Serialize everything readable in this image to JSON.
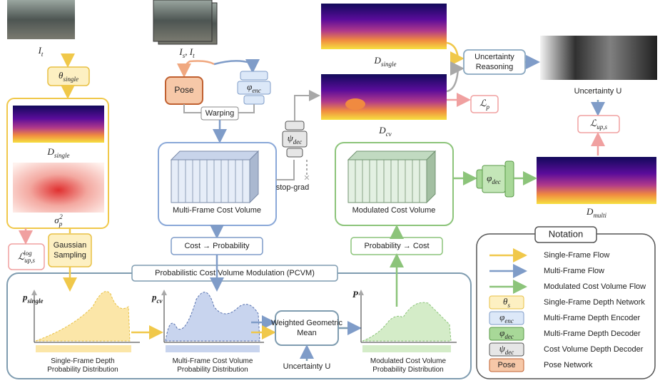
{
  "inputs": {
    "target": {
      "base": "I",
      "sub": "t"
    },
    "pair": {
      "base": "I",
      "sub": "s",
      "base2": ", I",
      "sub2": "t"
    }
  },
  "left_branch": {
    "network": {
      "base": "θ",
      "sub": "single"
    },
    "depth": {
      "base": "D",
      "sub": "single"
    },
    "variance": {
      "base": "σ",
      "sub": "p",
      "sup": "2"
    },
    "loss": {
      "base": "ℒ",
      "sub": "up,s",
      "sup": "log"
    },
    "sampling": "Gaussian Sampling"
  },
  "multi_branch": {
    "pose": "Pose",
    "encoder": {
      "base": "φ",
      "sub": "enc"
    },
    "warping": "Warping",
    "cost_volume": "Multi-Frame Cost Volume",
    "to_probability": "Cost → Probability",
    "cv_decoder": {
      "base": "ψ",
      "sub": "dec"
    },
    "stop_grad": "stop-grad"
  },
  "outputs": {
    "single_depth": {
      "base": "D",
      "sub": "single"
    },
    "cv_depth": {
      "base": "D",
      "sub": "cv"
    },
    "photo_loss": {
      "base": "ℒ",
      "sub": "p"
    },
    "reasoning": "Uncertainty Reasoning",
    "uncertainty": {
      "base": "Uncertainty U"
    },
    "uncertainty_loss": {
      "base": "ℒ",
      "sub": "up,s"
    },
    "multi_depth": {
      "base": "D",
      "sub": "multi"
    },
    "modulated_volume": "Modulated Cost Volume",
    "decoder": {
      "base": "φ",
      "sub": "dec"
    },
    "to_cost": "Probability → Cost"
  },
  "pcvm": {
    "title": "Probabilistic Cost Volume Modulation (PCVM)",
    "single_axis": {
      "base": "p",
      "sub": "single"
    },
    "cv_axis": {
      "base": "p",
      "sub": "cv"
    },
    "result_axis": {
      "base": "P"
    },
    "mean": "Weighted Geometric Mean",
    "uncertainty": "Uncertainty U",
    "single_caption": [
      "Single-Frame Depth",
      "Probability Distribution"
    ],
    "cv_caption": [
      "Multi-Frame Cost Volume",
      "Probability Distribution"
    ],
    "result_caption": [
      "Modulated Cost Volume",
      "Probability Distribution"
    ]
  },
  "notation": {
    "title": "Notation",
    "flows": [
      "Single-Frame Flow",
      "Multi-Frame Flow",
      "Modulated Cost Volume Flow"
    ],
    "modules": [
      {
        "symbol": {
          "base": "θ",
          "sub": "s"
        },
        "label": "Single-Frame Depth Network"
      },
      {
        "symbol": {
          "base": "φ",
          "sub": "enc"
        },
        "label": "Multi-Frame Depth Encoder"
      },
      {
        "symbol": {
          "base": "φ",
          "sub": "dec"
        },
        "label": "Multi-Frame Depth Decoder"
      },
      {
        "symbol": {
          "base": "ψ",
          "sub": "dec"
        },
        "label": "Cost Volume Depth Decoder"
      },
      {
        "symbol": {
          "base": "Pose"
        },
        "label": "Pose Network"
      }
    ]
  }
}
